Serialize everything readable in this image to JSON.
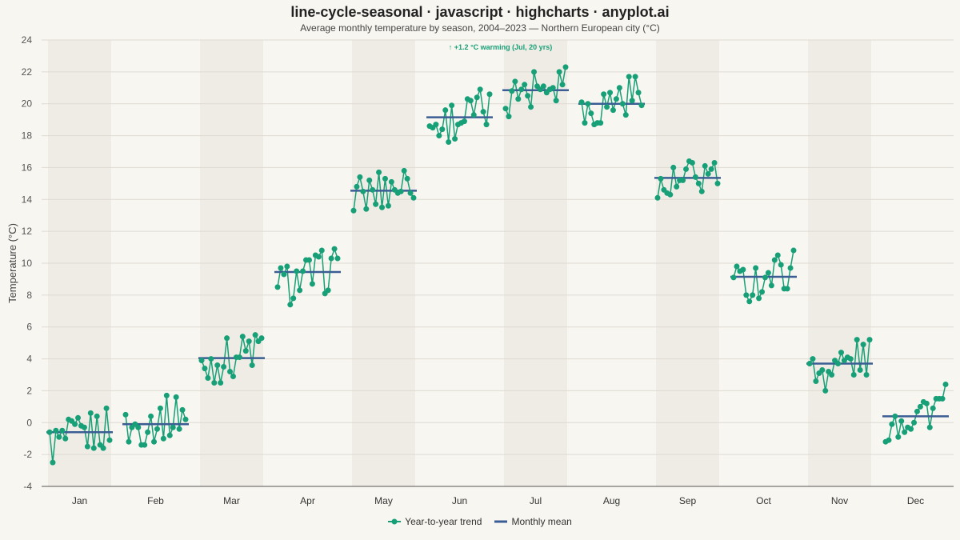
{
  "title": "line-cycle-seasonal · javascript · highcharts · anyplot.ai",
  "subtitle": "Average monthly temperature by season, 2004–2023 — Northern European city (°C)",
  "colors": {
    "background": "#f8f6f1",
    "band": "#efece6",
    "trend": "#17a077",
    "mean": "#3a5e94",
    "grid": "#dedad2",
    "axis_text": "#555555",
    "annotation": "#17a077"
  },
  "chart_data": {
    "type": "line",
    "ylabel": "Temperature (°C)",
    "xlabel": "",
    "ylim": [
      -4,
      24
    ],
    "yticks": [
      -4,
      -2,
      0,
      2,
      4,
      6,
      8,
      10,
      12,
      14,
      16,
      18,
      20,
      22,
      24
    ],
    "years": [
      2004,
      2023
    ],
    "grid": true,
    "alternating_bands": true,
    "annotation": {
      "text": "↑ +1.2 °C warming (Jul, 20 yrs)",
      "month_index": 6,
      "y": 23.4
    },
    "legend": {
      "position": "bottom-center",
      "items": [
        "Year-to-year trend",
        "Monthly mean"
      ]
    },
    "months": [
      {
        "label": "Jan",
        "mean": -0.6,
        "values": [
          -0.6,
          -2.5,
          -0.5,
          -0.9,
          -0.5,
          -1.0,
          0.2,
          0.1,
          -0.1,
          0.3,
          -0.2,
          -0.3,
          -1.5,
          0.6,
          -1.6,
          0.4,
          -1.4,
          -1.6,
          0.9,
          -1.1
        ]
      },
      {
        "label": "Feb",
        "mean": -0.1,
        "values": [
          0.5,
          -1.2,
          -0.3,
          -0.1,
          -0.3,
          -1.4,
          -1.4,
          -0.6,
          0.4,
          -1.2,
          -0.4,
          0.9,
          -1.0,
          1.7,
          -0.8,
          -0.3,
          1.6,
          -0.4,
          0.8,
          0.2
        ]
      },
      {
        "label": "Mar",
        "mean": 4.05,
        "values": [
          3.9,
          3.4,
          2.8,
          4.0,
          2.5,
          3.6,
          2.5,
          3.5,
          5.3,
          3.2,
          2.9,
          4.1,
          4.1,
          5.4,
          4.5,
          5.1,
          3.6,
          5.5,
          5.1,
          5.3
        ]
      },
      {
        "label": "Apr",
        "mean": 9.45,
        "values": [
          8.5,
          9.7,
          9.3,
          9.8,
          7.4,
          7.8,
          9.5,
          8.3,
          9.5,
          10.2,
          10.2,
          8.7,
          10.5,
          10.4,
          10.8,
          8.1,
          8.3,
          10.3,
          10.9,
          10.3
        ]
      },
      {
        "label": "May",
        "mean": 14.55,
        "values": [
          13.3,
          14.8,
          15.4,
          14.5,
          13.4,
          15.2,
          14.6,
          13.7,
          15.7,
          13.5,
          15.3,
          13.6,
          15.1,
          14.6,
          14.4,
          14.5,
          15.8,
          15.3,
          14.4,
          14.1
        ]
      },
      {
        "label": "Jun",
        "mean": 19.15,
        "values": [
          18.6,
          18.5,
          18.7,
          18.0,
          18.4,
          19.6,
          17.6,
          19.9,
          17.8,
          18.7,
          18.8,
          18.9,
          20.3,
          20.2,
          19.3,
          20.4,
          20.9,
          19.5,
          18.7,
          20.6
        ]
      },
      {
        "label": "Jul",
        "mean": 20.85,
        "values": [
          19.7,
          19.2,
          20.8,
          21.4,
          20.3,
          20.9,
          21.2,
          20.5,
          19.8,
          22.0,
          21.1,
          20.9,
          21.1,
          20.7,
          20.9,
          21.0,
          20.2,
          22.0,
          21.2,
          22.3
        ]
      },
      {
        "label": "Aug",
        "mean": 20.0,
        "values": [
          20.1,
          18.8,
          20.0,
          19.4,
          18.7,
          18.8,
          18.8,
          20.6,
          19.8,
          20.7,
          19.6,
          20.3,
          21.0,
          20.0,
          19.3,
          21.7,
          20.2,
          21.7,
          20.7,
          19.9
        ]
      },
      {
        "label": "Sep",
        "mean": 15.35,
        "values": [
          14.1,
          15.3,
          14.6,
          14.4,
          14.3,
          16.0,
          14.8,
          15.2,
          15.2,
          15.9,
          16.4,
          16.3,
          15.4,
          15.0,
          14.5,
          16.1,
          15.6,
          15.9,
          16.3,
          15.0
        ]
      },
      {
        "label": "Oct",
        "mean": 9.15,
        "values": [
          9.1,
          9.8,
          9.5,
          9.6,
          8.0,
          7.6,
          8.0,
          9.7,
          7.8,
          8.2,
          9.1,
          9.4,
          8.6,
          10.2,
          10.5,
          9.9,
          8.4,
          8.4,
          9.7,
          10.8
        ]
      },
      {
        "label": "Nov",
        "mean": 3.7,
        "values": [
          3.7,
          4.0,
          2.6,
          3.1,
          3.3,
          2.0,
          3.2,
          3.0,
          3.9,
          3.7,
          4.4,
          3.9,
          4.1,
          4.0,
          3.0,
          5.2,
          3.3,
          4.9,
          3.0,
          5.2
        ]
      },
      {
        "label": "Dec",
        "mean": 0.4,
        "values": [
          -1.2,
          -1.1,
          -0.1,
          0.4,
          -0.9,
          0.1,
          -0.6,
          -0.3,
          -0.4,
          0.0,
          0.7,
          1.0,
          1.3,
          1.2,
          -0.3,
          0.9,
          1.5,
          1.5,
          1.5,
          2.4
        ]
      }
    ]
  }
}
